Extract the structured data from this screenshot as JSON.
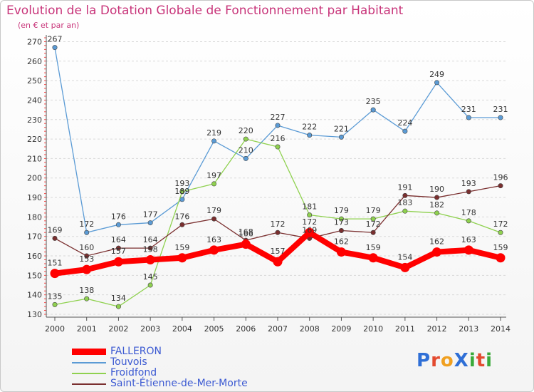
{
  "title": "Evolution de la Dotation Globale de Fonctionnement par Habitant",
  "subtitle": "(en € et par an)",
  "logo": {
    "text": "ProXiti",
    "colors": [
      "#2f6fd6",
      "#e34a2f",
      "#f0a020",
      "#2f6fd6",
      "#3aaa3a",
      "#e34a2f",
      "#3aaa3a"
    ]
  },
  "chart_data": {
    "type": "line",
    "title": "Evolution de la Dotation Globale de Fonctionnement par Habitant",
    "ylabel": "(en € et par an)",
    "xlabel": "",
    "categories": [
      "2000",
      "2001",
      "2002",
      "2003",
      "2004",
      "2005",
      "2006",
      "2007",
      "2008",
      "2009",
      "2010",
      "2011",
      "2012",
      "2013",
      "2014"
    ],
    "yticks": [
      130,
      140,
      150,
      160,
      170,
      180,
      190,
      200,
      210,
      220,
      230,
      240,
      250,
      260,
      270
    ],
    "ylim": [
      130,
      272
    ],
    "grid": "horizontal dashed",
    "legend_position": "bottom-left",
    "series": [
      {
        "name": "FALLERON",
        "color": "#ff0000",
        "values": [
          151,
          153,
          157,
          158,
          159,
          163,
          166,
          157,
          172,
          162,
          159,
          154,
          162,
          163,
          159
        ],
        "labels": [
          "151",
          "153",
          "157",
          "158",
          "159",
          "163",
          "166",
          "157",
          "172",
          "162",
          "159",
          "154",
          "162",
          "163",
          "159"
        ]
      },
      {
        "name": "Touvois",
        "color": "#5b9bd5",
        "values": [
          267,
          172,
          176,
          177,
          189,
          219,
          210,
          227,
          222,
          221,
          235,
          224,
          249,
          231,
          231
        ],
        "labels": [
          "267",
          "172",
          "176",
          "177",
          "189",
          "219",
          "210",
          "227",
          "222",
          "221",
          "235",
          "224",
          "249",
          "231",
          "231"
        ]
      },
      {
        "name": "Froidfond",
        "color": "#8fd14f",
        "values": [
          135,
          138,
          134,
          145,
          193,
          197,
          220,
          216,
          181,
          179,
          179,
          183,
          182,
          178,
          172
        ],
        "labels": [
          "135",
          "138",
          "134",
          "145",
          "193",
          "197",
          "220",
          "216",
          "181",
          "179",
          "179",
          "183",
          "182",
          "178",
          "172"
        ]
      },
      {
        "name": "Saint-Étienne-de-Mer-Morte",
        "color": "#7a2f2f",
        "values": [
          169,
          160,
          164,
          164,
          176,
          179,
          168,
          172,
          169,
          173,
          172,
          191,
          190,
          193,
          196
        ],
        "labels": [
          "169",
          "160",
          "164",
          "164",
          "176",
          "179",
          "168",
          "172",
          "169",
          "173",
          "172",
          "191",
          "190",
          "193",
          "196"
        ]
      }
    ]
  }
}
